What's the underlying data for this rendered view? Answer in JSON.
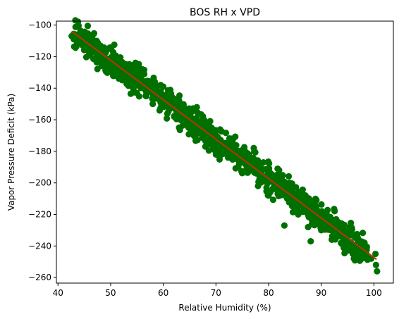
{
  "chart_data": {
    "type": "scatter",
    "title": "BOS RH x VPD",
    "xlabel": "Relative Humidity (%)",
    "ylabel": "Vapor Pressure Deficit (kPa)",
    "xlim": [
      39.7,
      103.7
    ],
    "ylim": [
      -263.5,
      -97.5
    ],
    "xticks": [
      40,
      50,
      60,
      70,
      80,
      90,
      100
    ],
    "yticks": [
      -100,
      -120,
      -140,
      -160,
      -180,
      -200,
      -220,
      -240,
      -260
    ],
    "grid": false,
    "legend": "none",
    "points_color": "#007000",
    "line_color": "#c0300a",
    "regression": {
      "slope": -2.496,
      "intercept": 2.4,
      "x_range": [
        42.6,
        100.5
      ]
    },
    "points": [
      [
        42.6,
        -107
      ],
      [
        43.4,
        -106
      ],
      [
        43.9,
        -109
      ],
      [
        45,
        -108
      ],
      [
        46,
        -113
      ],
      [
        47,
        -114
      ],
      [
        48,
        -116
      ],
      [
        48.2,
        -122
      ],
      [
        49,
        -117
      ],
      [
        50,
        -121
      ],
      [
        51,
        -124
      ],
      [
        52,
        -127
      ],
      [
        53,
        -125
      ],
      [
        53.5,
        -131
      ],
      [
        54,
        -133
      ],
      [
        55,
        -135
      ],
      [
        56,
        -137
      ],
      [
        57,
        -139
      ],
      [
        58,
        -141
      ],
      [
        59,
        -145
      ],
      [
        60,
        -148
      ],
      [
        61,
        -149
      ],
      [
        62,
        -152
      ],
      [
        63,
        -155
      ],
      [
        64,
        -158
      ],
      [
        65,
        -162
      ],
      [
        66,
        -163
      ],
      [
        67,
        -166
      ],
      [
        68,
        -169
      ],
      [
        69,
        -170
      ],
      [
        70,
        -172
      ],
      [
        71,
        -175
      ],
      [
        72,
        -177
      ],
      [
        73,
        -180
      ],
      [
        74,
        -183
      ],
      [
        75,
        -186
      ],
      [
        76,
        -188
      ],
      [
        77,
        -190
      ],
      [
        78,
        -193
      ],
      [
        79,
        -196
      ],
      [
        80,
        -198
      ],
      [
        81,
        -200
      ],
      [
        82,
        -203
      ],
      [
        83,
        -205
      ],
      [
        84,
        -208
      ],
      [
        85,
        -210
      ],
      [
        86,
        -213
      ],
      [
        87,
        -215
      ],
      [
        88,
        -218
      ],
      [
        89,
        -220
      ],
      [
        90,
        -222
      ],
      [
        91,
        -226
      ],
      [
        92,
        -229
      ],
      [
        93,
        -231
      ],
      [
        94,
        -233
      ],
      [
        95,
        -236
      ],
      [
        95.5,
        -242
      ],
      [
        96,
        -245
      ],
      [
        96.2,
        -248
      ],
      [
        97,
        -244
      ],
      [
        97.5,
        -248
      ],
      [
        98,
        -242
      ],
      [
        98.5,
        -246
      ],
      [
        99.5,
        -248
      ],
      [
        100.3,
        -245
      ],
      [
        100.4,
        -252
      ],
      [
        100.6,
        -256
      ],
      [
        87.5,
        -228
      ],
      [
        83,
        -227
      ],
      [
        88,
        -237
      ],
      [
        85,
        -215
      ],
      [
        87,
        -208
      ],
      [
        80,
        -208
      ],
      [
        78,
        -202
      ],
      [
        75,
        -180
      ],
      [
        73,
        -172
      ],
      [
        70,
        -182
      ],
      [
        68,
        -177
      ],
      [
        65,
        -154
      ],
      [
        63,
        -165
      ],
      [
        60,
        -139
      ],
      [
        58,
        -150
      ],
      [
        56,
        -128
      ],
      [
        55,
        -143
      ],
      [
        52,
        -130
      ],
      [
        50,
        -115
      ],
      [
        90,
        -230
      ],
      [
        92,
        -236
      ],
      [
        93,
        -225
      ],
      [
        82,
        -192
      ],
      [
        84,
        -200
      ]
    ]
  }
}
